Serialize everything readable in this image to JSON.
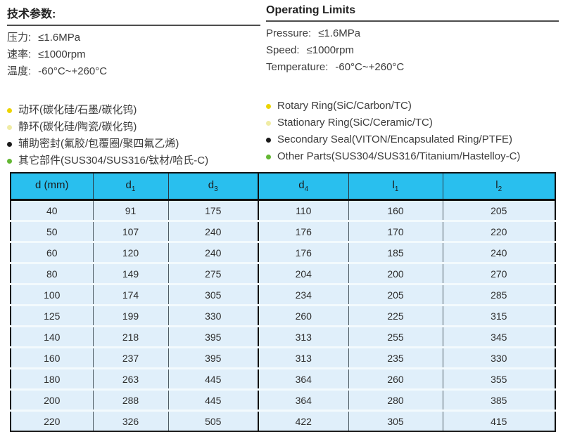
{
  "specs_zh": {
    "title": "技术参数:",
    "params": [
      {
        "label": "压力:",
        "value": "≤1.6MPa"
      },
      {
        "label": "速率:",
        "value": "≤1000rpm"
      },
      {
        "label": "温度:",
        "value": "-60°C~+260°C"
      }
    ],
    "materials": [
      {
        "text": "动环(碳化硅/石墨/碳化钨)",
        "bullet_color": "#ecd400"
      },
      {
        "text": "静环(碳化硅/陶瓷/碳化钨)",
        "bullet_color": "#f0eca4"
      },
      {
        "text": "辅助密封(氟胶/包覆圈/聚四氟乙烯)",
        "bullet_color": "#1b1b1b"
      },
      {
        "text": "其它部件(SUS304/SUS316/钛材/哈氏-C)",
        "bullet_color": "#63b733"
      }
    ]
  },
  "specs_en": {
    "title": "Operating Limits",
    "params": [
      {
        "label": "Pressure:",
        "value": "≤1.6MPa"
      },
      {
        "label": "Speed:",
        "value": "≤1000rpm"
      },
      {
        "label": "Temperature:",
        "value": "-60°C~+260°C"
      }
    ],
    "materials": [
      {
        "text": "Rotary Ring(SiC/Carbon/TC)",
        "bullet_color": "#ecd400"
      },
      {
        "text": "Stationary Ring(SiC/Ceramic/TC)",
        "bullet_color": "#f0eca4"
      },
      {
        "text": "Secondary Seal(VITON/Encapsulated Ring/PTFE)",
        "bullet_color": "#1b1b1b"
      },
      {
        "text": "Other Parts(SUS304/SUS316/Titanium/Hastelloy-C)",
        "bullet_color": "#63b733"
      }
    ]
  },
  "table": {
    "headers": [
      {
        "base": "d (mm)",
        "sub": ""
      },
      {
        "base": "d",
        "sub": "1"
      },
      {
        "base": "d",
        "sub": "3"
      },
      {
        "base": "d",
        "sub": "4"
      },
      {
        "base": "l",
        "sub": "1"
      },
      {
        "base": "l",
        "sub": "2"
      }
    ],
    "rows": [
      [
        40,
        91,
        175,
        110,
        160,
        205
      ],
      [
        50,
        107,
        240,
        176,
        170,
        220
      ],
      [
        60,
        120,
        240,
        176,
        185,
        240
      ],
      [
        80,
        149,
        275,
        204,
        200,
        270
      ],
      [
        100,
        174,
        305,
        234,
        205,
        285
      ],
      [
        125,
        199,
        330,
        260,
        225,
        315
      ],
      [
        140,
        218,
        395,
        313,
        255,
        345
      ],
      [
        160,
        237,
        395,
        313,
        235,
        330
      ],
      [
        180,
        263,
        445,
        364,
        260,
        355
      ],
      [
        200,
        288,
        445,
        364,
        280,
        385
      ],
      [
        220,
        326,
        505,
        422,
        305,
        415
      ]
    ]
  },
  "colors": {
    "table_header_bg": "#29bfee",
    "table_row_bg": "#e0effa",
    "title_underline": "#4d4d4d"
  }
}
